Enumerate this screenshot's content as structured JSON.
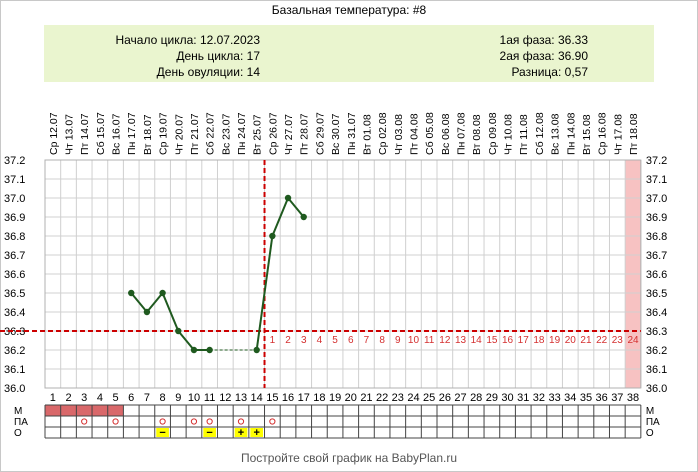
{
  "title": "Базальная температура: #8",
  "info": {
    "left": [
      {
        "label": "Начало цикла:",
        "value": "12.07.2023"
      },
      {
        "label": "День цикла:",
        "value": "17"
      },
      {
        "label": "День овуляции:",
        "value": "14"
      }
    ],
    "right": [
      {
        "label": "1ая фаза:",
        "value": "36.33"
      },
      {
        "label": "2ая фаза:",
        "value": "36.90"
      },
      {
        "label": "Разница:",
        "value": "0,57"
      }
    ]
  },
  "footer": "Постройте свой график на BabyPlan.ru",
  "colors": {
    "info_bg": "#eaf5cf",
    "line": "#1f5a1f",
    "marker": "#1f5a1f",
    "coverline": "#cc0000",
    "post_ovulation_number": "#d43030",
    "highlight_day": "#f7c2c2",
    "menstruation": "#d9686a",
    "circle_mark": "#d43030",
    "sign_bg": "#ffff00"
  },
  "chart_data": {
    "type": "line",
    "ylim": [
      36.0,
      37.2
    ],
    "yticks": [
      "36.0",
      "36.1",
      "36.2",
      "36.3",
      "36.4",
      "36.5",
      "36.6",
      "36.7",
      "36.8",
      "36.9",
      "37.0",
      "37.1",
      "37.2"
    ],
    "days": [
      {
        "wd": "Ср",
        "date": "12.07"
      },
      {
        "wd": "Чт",
        "date": "13.07"
      },
      {
        "wd": "Пт",
        "date": "14.07"
      },
      {
        "wd": "Сб",
        "date": "15.07"
      },
      {
        "wd": "Вс",
        "date": "16.07"
      },
      {
        "wd": "Пн",
        "date": "17.07"
      },
      {
        "wd": "Вт",
        "date": "18.07"
      },
      {
        "wd": "Ср",
        "date": "19.07"
      },
      {
        "wd": "Чт",
        "date": "20.07"
      },
      {
        "wd": "Пт",
        "date": "21.07"
      },
      {
        "wd": "Сб",
        "date": "22.07"
      },
      {
        "wd": "Вс",
        "date": "23.07"
      },
      {
        "wd": "Пн",
        "date": "24.07"
      },
      {
        "wd": "Вт",
        "date": "25.07"
      },
      {
        "wd": "Ср",
        "date": "26.07"
      },
      {
        "wd": "Чт",
        "date": "27.07"
      },
      {
        "wd": "Пт",
        "date": "28.07"
      },
      {
        "wd": "Сб",
        "date": "29.07"
      },
      {
        "wd": "Вс",
        "date": "30.07"
      },
      {
        "wd": "Пн",
        "date": "31.07"
      },
      {
        "wd": "Вт",
        "date": "01.08"
      },
      {
        "wd": "Ср",
        "date": "02.08"
      },
      {
        "wd": "Чт",
        "date": "03.08"
      },
      {
        "wd": "Пт",
        "date": "04.08"
      },
      {
        "wd": "Сб",
        "date": "05.08"
      },
      {
        "wd": "Вс",
        "date": "06.08"
      },
      {
        "wd": "Пн",
        "date": "07.08"
      },
      {
        "wd": "Вт",
        "date": "08.08"
      },
      {
        "wd": "Ср",
        "date": "09.08"
      },
      {
        "wd": "Чт",
        "date": "10.08"
      },
      {
        "wd": "Пт",
        "date": "11.08"
      },
      {
        "wd": "Сб",
        "date": "12.08"
      },
      {
        "wd": "Вс",
        "date": "13.08"
      },
      {
        "wd": "Пн",
        "date": "14.08"
      },
      {
        "wd": "Вт",
        "date": "15.08"
      },
      {
        "wd": "Ср",
        "date": "16.08"
      },
      {
        "wd": "Чт",
        "date": "17.08"
      },
      {
        "wd": "Пт",
        "date": "18.08"
      }
    ],
    "temps": [
      {
        "day": 6,
        "value": 36.5
      },
      {
        "day": 7,
        "value": 36.4
      },
      {
        "day": 8,
        "value": 36.5
      },
      {
        "day": 9,
        "value": 36.3
      },
      {
        "day": 10,
        "value": 36.2
      },
      {
        "day": 11,
        "value": 36.2
      },
      {
        "day": 14,
        "value": 36.2
      },
      {
        "day": 15,
        "value": 36.8
      },
      {
        "day": 16,
        "value": 37.0
      },
      {
        "day": 17,
        "value": 36.9
      }
    ],
    "gap_segments": [
      {
        "from": 11,
        "to": 14
      }
    ],
    "coverline": 36.3,
    "ovulation_day": 14,
    "highlight_day": 38,
    "post_ovulation_numbers": [
      "1",
      "2",
      "3",
      "4",
      "5",
      "6",
      "7",
      "8",
      "9",
      "10",
      "11",
      "12",
      "13",
      "14",
      "15",
      "16",
      "17",
      "18",
      "19",
      "20",
      "21",
      "22",
      "23",
      "24"
    ],
    "rows": {
      "labels": [
        "М",
        "ПА",
        "О"
      ],
      "menstruation_days": [
        1,
        2,
        3,
        4,
        5
      ],
      "pa_circle_days": [
        3,
        5,
        8,
        10,
        11,
        13,
        15
      ],
      "o_marks": [
        {
          "day": 8,
          "mark": "−"
        },
        {
          "day": 11,
          "mark": "−"
        },
        {
          "day": 13,
          "mark": "+"
        },
        {
          "day": 14,
          "mark": "+"
        }
      ]
    }
  }
}
